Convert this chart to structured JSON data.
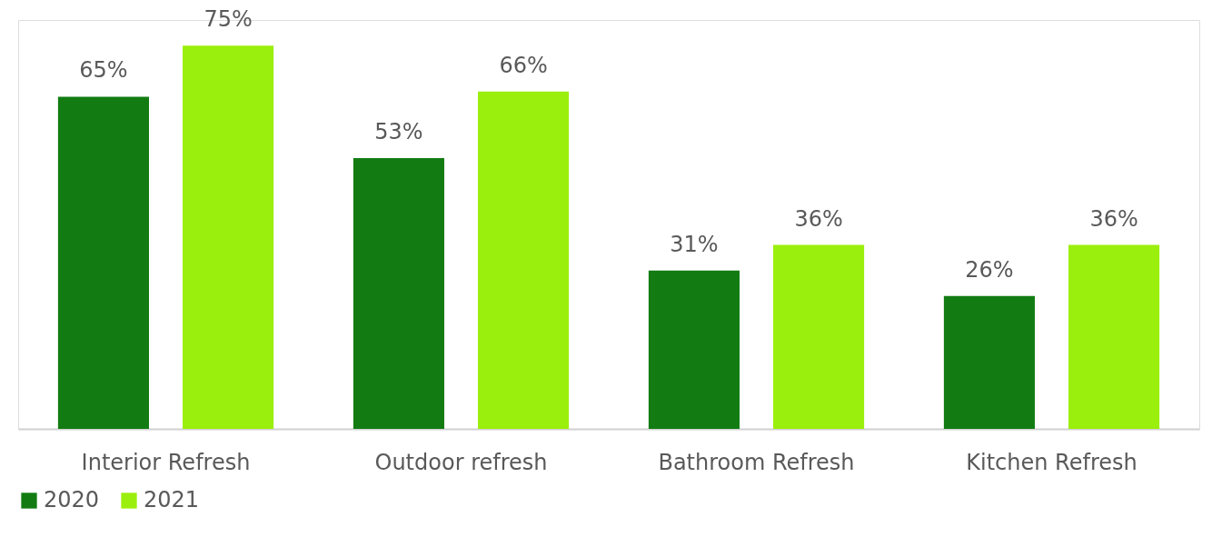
{
  "chart_data": {
    "type": "bar",
    "categories": [
      "Interior Refresh",
      "Outdoor refresh",
      "Bathroom Refresh",
      "Kitchen Refresh"
    ],
    "series": [
      {
        "name": "2020",
        "color": "#127c12",
        "values": [
          65,
          53,
          31,
          26
        ],
        "value_labels": [
          "65%",
          "53%",
          "31%",
          "26%"
        ]
      },
      {
        "name": "2021",
        "color": "#9bef0c",
        "values": [
          75,
          66,
          36,
          36
        ],
        "value_labels": [
          "75%",
          "66%",
          "36%",
          "36%"
        ]
      }
    ],
    "legend": "bottom",
    "grid": false,
    "tick_labels": "x"
  }
}
